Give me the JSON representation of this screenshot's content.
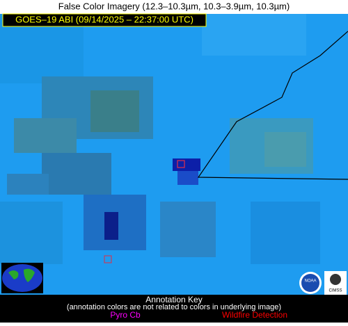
{
  "header": {
    "title": "False Color Imagery (12.3–10.3µm, 10.3–3.9µm, 10.3µm)",
    "subtitle": "GOES–19 ABI (09/14/2025 – 22:37:00 UTC)"
  },
  "annotation_key": {
    "title": "Annotation Key",
    "note": "(annotation colors are not related to colors in underlying image)",
    "items": [
      "Pyro Cb",
      "Wildfire Detection"
    ]
  },
  "logos": [
    "NOAA",
    "CIMSS"
  ]
}
